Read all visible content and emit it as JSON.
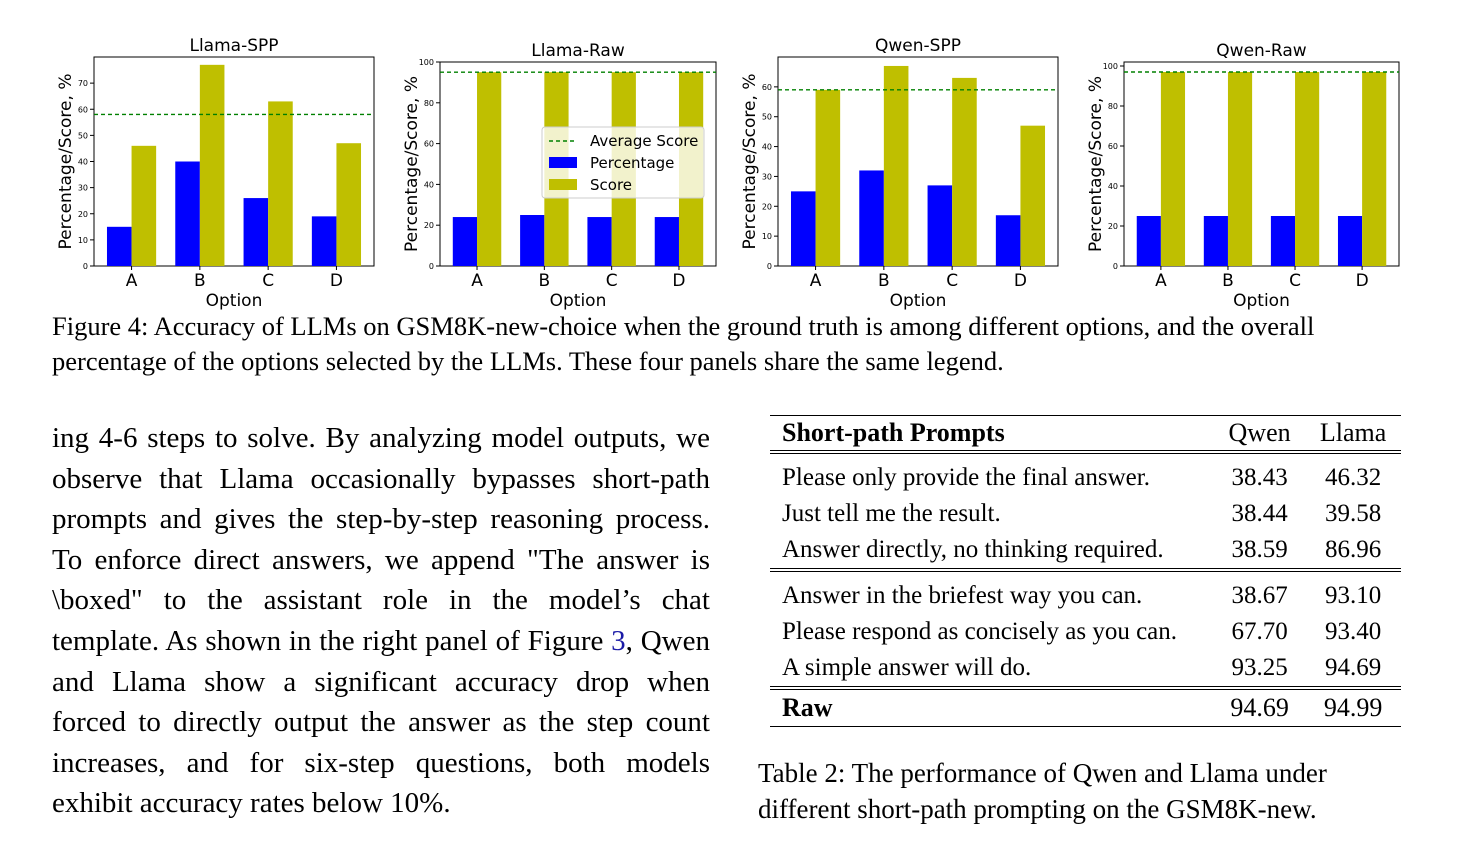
{
  "chart_data": [
    {
      "type": "bar",
      "title": "Llama-SPP",
      "xlabel": "Option",
      "ylabel": "Percentage/Score, %",
      "categories": [
        "A",
        "B",
        "C",
        "D"
      ],
      "series": [
        {
          "name": "Percentage",
          "values": [
            15,
            40,
            26,
            19
          ]
        },
        {
          "name": "Score",
          "values": [
            46,
            77,
            63,
            47
          ]
        }
      ],
      "average_score": 58,
      "ylim": [
        0,
        80
      ],
      "yticks": [
        0,
        10,
        20,
        30,
        40,
        50,
        60,
        70
      ]
    },
    {
      "type": "bar",
      "title": "Llama-Raw",
      "xlabel": "Option",
      "ylabel": "Percentage/Score, %",
      "categories": [
        "A",
        "B",
        "C",
        "D"
      ],
      "series": [
        {
          "name": "Percentage",
          "values": [
            24,
            25,
            24,
            24
          ]
        },
        {
          "name": "Score",
          "values": [
            95,
            95,
            95,
            95
          ]
        }
      ],
      "average_score": 95,
      "ylim": [
        0,
        100
      ],
      "yticks": [
        0,
        20,
        40,
        60,
        80,
        100
      ],
      "legend": "center-right"
    },
    {
      "type": "bar",
      "title": "Qwen-SPP",
      "xlabel": "Option",
      "ylabel": "Percentage/Score, %",
      "categories": [
        "A",
        "B",
        "C",
        "D"
      ],
      "series": [
        {
          "name": "Percentage",
          "values": [
            25,
            32,
            27,
            17
          ]
        },
        {
          "name": "Score",
          "values": [
            59,
            67,
            63,
            47
          ]
        }
      ],
      "average_score": 59,
      "ylim": [
        0,
        70
      ],
      "yticks": [
        0,
        10,
        20,
        30,
        40,
        50,
        60
      ]
    },
    {
      "type": "bar",
      "title": "Qwen-Raw",
      "xlabel": "Option",
      "ylabel": "Percentage/Score, %",
      "categories": [
        "A",
        "B",
        "C",
        "D"
      ],
      "series": [
        {
          "name": "Percentage",
          "values": [
            25,
            25,
            25,
            25
          ]
        },
        {
          "name": "Score",
          "values": [
            97,
            97,
            97,
            97
          ]
        }
      ],
      "average_score": 97,
      "ylim": [
        0,
        102
      ],
      "yticks": [
        0,
        20,
        40,
        60,
        80,
        100
      ]
    }
  ],
  "legend": {
    "average": "Average Score",
    "percentage": "Percentage",
    "score": "Score"
  },
  "colors": {
    "percentage": "#0000ff",
    "score": "#bfbf00",
    "average": "#008000"
  },
  "figure_caption": "Figure 4: Accuracy of LLMs on GSM8K-new-choice when the ground truth is among different options, and the overall percentage of the options selected by the LLMs. These four panels share the same legend.",
  "body": {
    "before_ref": "ing 4-6 steps to solve. By analyzing model outputs, we observe that Llama occasionally bypasses short-path prompts and gives the step-by-step reasoning process. To enforce direct answers, we append \"The answer is \\boxed\" to the assistant role in the model’s chat template. As shown in the right panel of Figure ",
    "ref": "3",
    "after_ref": ", Qwen and Llama show a significant accuracy drop when forced to directly output the answer as the step count increases, and for six-step questions, both models exhibit accuracy rates below 10%."
  },
  "table": {
    "header": [
      "Short-path Prompts",
      "Qwen",
      "Llama"
    ],
    "group1": [
      [
        "Please only provide the final answer.",
        "38.43",
        "46.32"
      ],
      [
        "Just tell me the result.",
        "38.44",
        "39.58"
      ],
      [
        "Answer directly, no thinking required.",
        "38.59",
        "86.96"
      ]
    ],
    "group2": [
      [
        "Answer in the briefest way you can.",
        "38.67",
        "93.10"
      ],
      [
        "Please respond as concisely as you can.",
        "67.70",
        "93.40"
      ],
      [
        "A simple answer will do.",
        "93.25",
        "94.69"
      ]
    ],
    "raw": [
      "Raw",
      "94.69",
      "94.99"
    ],
    "caption": "Table 2: The performance of Qwen and Llama under different short-path prompting on the GSM8K-new."
  }
}
